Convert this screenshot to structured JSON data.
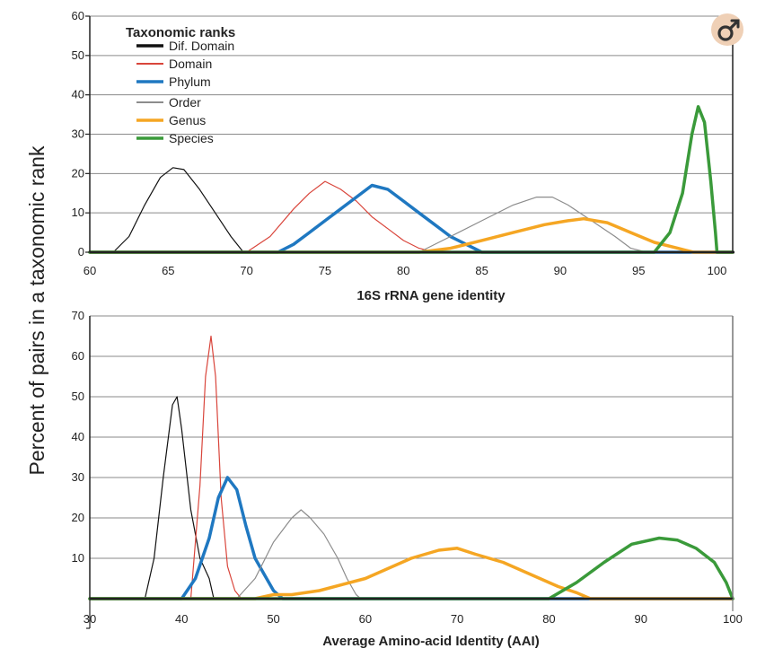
{
  "colors": {
    "dif_domain": "#111111",
    "domain": "#d9453b",
    "phylum": "#1f78c1",
    "order": "#8c8c8c",
    "genus": "#f5a623",
    "species": "#3a9a3a",
    "gridline": "#8a8a8a",
    "axis": "#222222",
    "logo": "#d9a37a"
  },
  "y_axis_label": "Percent of pairs in a taxonomic rank",
  "logo_icon": "gender-symbol-icon",
  "legend": {
    "title": "Taxonomic ranks",
    "placement": "top-left of top panel",
    "entries": [
      {
        "label": "Dif. Domain",
        "color_key": "dif_domain"
      },
      {
        "label": "Domain",
        "color_key": "domain"
      },
      {
        "label": "Phylum",
        "color_key": "phylum"
      },
      {
        "label": "Order",
        "color_key": "order"
      },
      {
        "label": "Genus",
        "color_key": "genus"
      },
      {
        "label": "Species",
        "color_key": "species"
      }
    ]
  },
  "chart_data": [
    {
      "type": "line",
      "xlabel": "16S rRNA gene identity",
      "ylabel": "Percent of pairs in a taxonomic rank",
      "xlim": [
        60,
        101
      ],
      "ylim": [
        0,
        60
      ],
      "xticks": [
        60,
        65,
        70,
        75,
        80,
        85,
        90,
        95,
        100
      ],
      "yticks": [
        0,
        10,
        20,
        30,
        40,
        50,
        60
      ],
      "grid": "horizontal",
      "series": [
        {
          "name": "Dif. Domain",
          "color_key": "dif_domain",
          "width": 1.2,
          "points": [
            [
              60,
              0
            ],
            [
              61.5,
              0
            ],
            [
              62.5,
              4
            ],
            [
              63.5,
              12
            ],
            [
              64.5,
              19
            ],
            [
              65.3,
              21.5
            ],
            [
              66,
              21
            ],
            [
              67,
              16
            ],
            [
              68,
              10
            ],
            [
              69,
              4
            ],
            [
              69.8,
              0
            ],
            [
              101,
              0
            ]
          ]
        },
        {
          "name": "Domain",
          "color_key": "domain",
          "width": 1.2,
          "points": [
            [
              60,
              0
            ],
            [
              70,
              0
            ],
            [
              71.5,
              4
            ],
            [
              73,
              11
            ],
            [
              74,
              15
            ],
            [
              75,
              18
            ],
            [
              76,
              16
            ],
            [
              77,
              13
            ],
            [
              78,
              9
            ],
            [
              79,
              6
            ],
            [
              80,
              3
            ],
            [
              81,
              1
            ],
            [
              82,
              0
            ],
            [
              101,
              0
            ]
          ]
        },
        {
          "name": "Phylum",
          "color_key": "phylum",
          "width": 3.5,
          "points": [
            [
              60,
              0
            ],
            [
              72,
              0
            ],
            [
              73,
              2
            ],
            [
              74,
              5
            ],
            [
              75,
              8
            ],
            [
              76,
              11
            ],
            [
              77,
              14
            ],
            [
              78,
              17
            ],
            [
              79,
              16
            ],
            [
              80,
              13
            ],
            [
              81,
              10
            ],
            [
              82,
              7
            ],
            [
              83,
              4
            ],
            [
              84,
              2
            ],
            [
              85,
              0
            ],
            [
              101,
              0
            ]
          ]
        },
        {
          "name": "Order",
          "color_key": "order",
          "width": 1.2,
          "points": [
            [
              60,
              0
            ],
            [
              81,
              0
            ],
            [
              83,
              4
            ],
            [
              85,
              8
            ],
            [
              87,
              12
            ],
            [
              88.5,
              14
            ],
            [
              89.5,
              14
            ],
            [
              90.5,
              12
            ],
            [
              92,
              8
            ],
            [
              93.5,
              4
            ],
            [
              94.5,
              1
            ],
            [
              95.5,
              0
            ],
            [
              101,
              0
            ]
          ]
        },
        {
          "name": "Genus",
          "color_key": "genus",
          "width": 3.5,
          "points": [
            [
              60,
              0
            ],
            [
              81,
              0
            ],
            [
              83,
              1
            ],
            [
              85,
              3
            ],
            [
              87,
              5
            ],
            [
              89,
              7
            ],
            [
              90.5,
              8
            ],
            [
              91.5,
              8.5
            ],
            [
              93,
              7.5
            ],
            [
              94.5,
              5
            ],
            [
              96,
              2.5
            ],
            [
              97.5,
              1
            ],
            [
              98.5,
              0
            ],
            [
              101,
              0
            ]
          ]
        },
        {
          "name": "Species",
          "color_key": "species",
          "width": 3.5,
          "points": [
            [
              60,
              0
            ],
            [
              96,
              0
            ],
            [
              97,
              5
            ],
            [
              97.8,
              15
            ],
            [
              98.4,
              30
            ],
            [
              98.8,
              37
            ],
            [
              99.2,
              33
            ],
            [
              99.6,
              18
            ],
            [
              99.9,
              5
            ],
            [
              100,
              0
            ],
            [
              101,
              0
            ]
          ]
        }
      ]
    },
    {
      "type": "line",
      "xlabel": "Average Amino-acid Identity (AAI)",
      "ylabel": "Percent of pairs in a taxonomic rank",
      "xlim": [
        30,
        100
      ],
      "ylim": [
        0,
        70
      ],
      "xticks": [
        30,
        40,
        50,
        60,
        70,
        80,
        90,
        100
      ],
      "yticks": [
        10,
        20,
        30,
        40,
        50,
        60,
        70
      ],
      "grid": "horizontal",
      "series": [
        {
          "name": "Dif. Domain",
          "color_key": "dif_domain",
          "width": 1.2,
          "points": [
            [
              30,
              0
            ],
            [
              36,
              0
            ],
            [
              37,
              10
            ],
            [
              38,
              30
            ],
            [
              39,
              48
            ],
            [
              39.5,
              50
            ],
            [
              40,
              42
            ],
            [
              41,
              22
            ],
            [
              42,
              10
            ],
            [
              43,
              5
            ],
            [
              43.5,
              0
            ],
            [
              100,
              0
            ]
          ]
        },
        {
          "name": "Domain",
          "color_key": "domain",
          "width": 1.2,
          "points": [
            [
              30,
              0
            ],
            [
              41,
              0
            ],
            [
              42,
              28
            ],
            [
              42.6,
              55
            ],
            [
              43.2,
              65
            ],
            [
              43.7,
              55
            ],
            [
              44.3,
              25
            ],
            [
              45,
              8
            ],
            [
              45.8,
              2
            ],
            [
              46.5,
              0
            ],
            [
              100,
              0
            ]
          ]
        },
        {
          "name": "Phylum",
          "color_key": "phylum",
          "width": 3.5,
          "points": [
            [
              30,
              0
            ],
            [
              40,
              0
            ],
            [
              41.5,
              5
            ],
            [
              43,
              15
            ],
            [
              44,
              25
            ],
            [
              45,
              30
            ],
            [
              46,
              27
            ],
            [
              47,
              18
            ],
            [
              48,
              10
            ],
            [
              49,
              6
            ],
            [
              50,
              2
            ],
            [
              51,
              0
            ],
            [
              100,
              0
            ]
          ]
        },
        {
          "name": "Order",
          "color_key": "order",
          "width": 1.2,
          "points": [
            [
              30,
              0
            ],
            [
              46,
              0
            ],
            [
              48,
              5
            ],
            [
              50,
              14
            ],
            [
              52,
              20
            ],
            [
              53,
              22
            ],
            [
              54,
              20
            ],
            [
              55.5,
              16
            ],
            [
              57,
              10
            ],
            [
              58,
              5
            ],
            [
              59,
              1
            ],
            [
              59.5,
              0
            ],
            [
              100,
              0
            ]
          ]
        },
        {
          "name": "Genus",
          "color_key": "genus",
          "width": 3.5,
          "points": [
            [
              30,
              0
            ],
            [
              48,
              0
            ],
            [
              50,
              1
            ],
            [
              52,
              1
            ],
            [
              55,
              2
            ],
            [
              60,
              5
            ],
            [
              65,
              10
            ],
            [
              68,
              12
            ],
            [
              70,
              12.5
            ],
            [
              72,
              11
            ],
            [
              75,
              9
            ],
            [
              78,
              6
            ],
            [
              81,
              3
            ],
            [
              83,
              1.5
            ],
            [
              84.5,
              0
            ],
            [
              100,
              0
            ]
          ]
        },
        {
          "name": "Species",
          "color_key": "species",
          "width": 3.5,
          "points": [
            [
              30,
              0
            ],
            [
              80,
              0
            ],
            [
              83,
              4
            ],
            [
              86,
              9
            ],
            [
              89,
              13.5
            ],
            [
              92,
              15
            ],
            [
              94,
              14.5
            ],
            [
              96,
              12.5
            ],
            [
              98,
              9
            ],
            [
              99.3,
              4
            ],
            [
              100,
              0
            ]
          ]
        }
      ]
    }
  ]
}
